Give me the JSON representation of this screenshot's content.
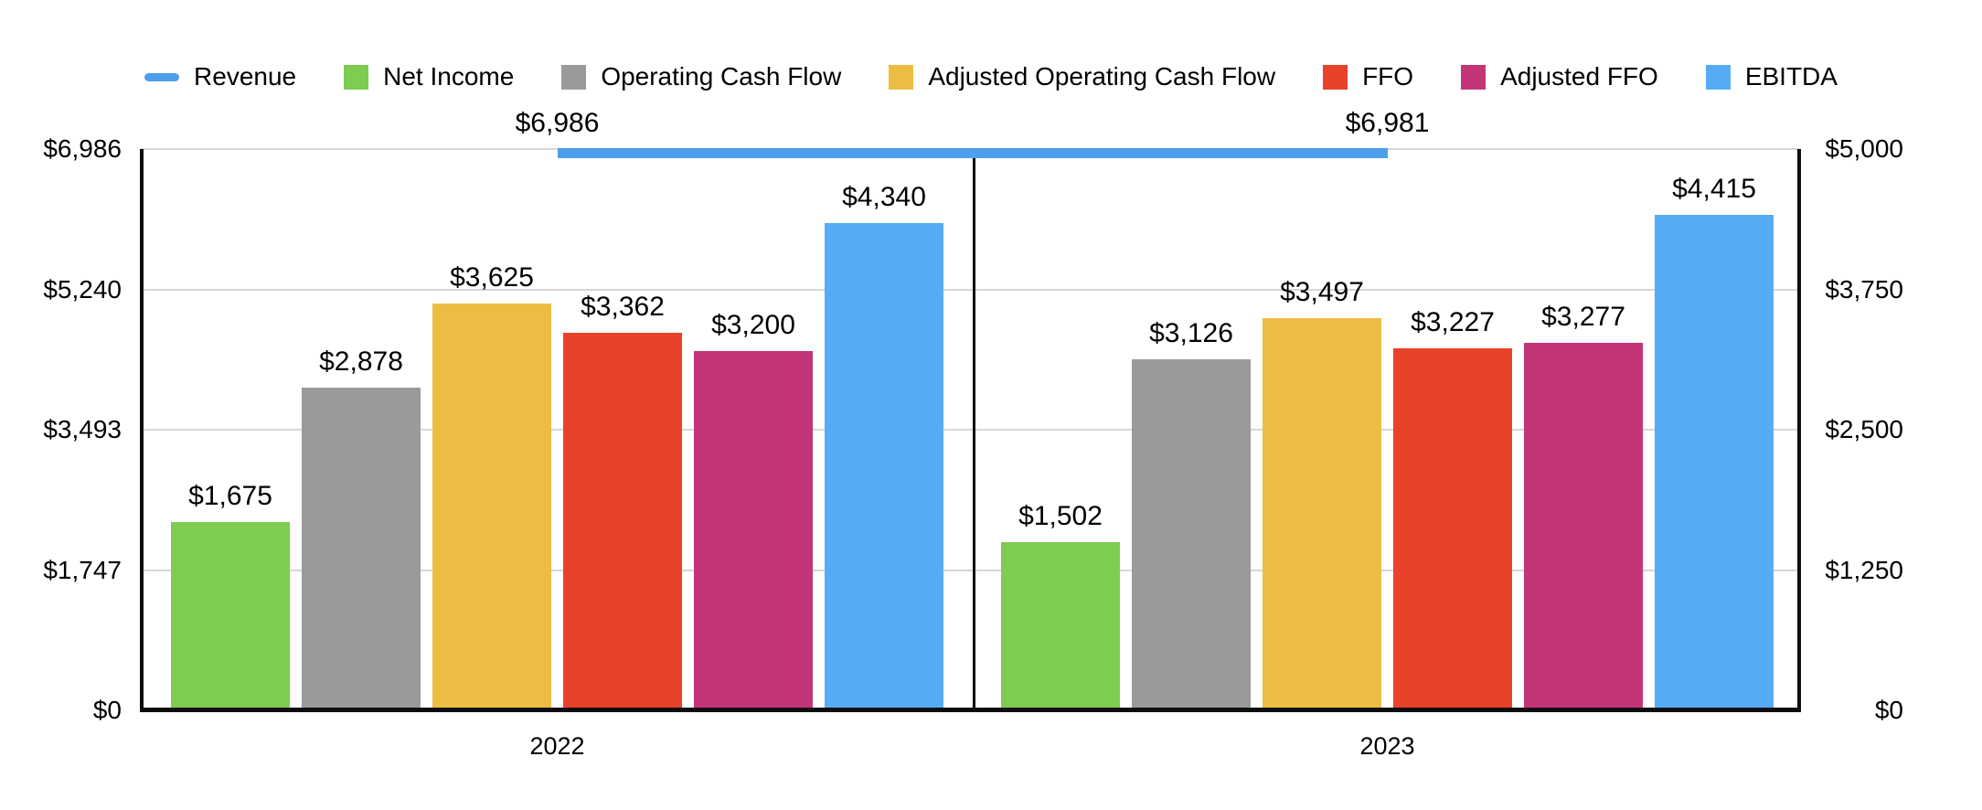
{
  "colors": {
    "background": "#ffffff",
    "gridline": "#d6d6d6",
    "axis_frame": "#0d0d0d",
    "text": "#000000"
  },
  "chart_data": {
    "type": "combo-bar-line",
    "title": "",
    "xlabel": "",
    "ylabel": "",
    "grid": true,
    "legend_position": "top",
    "categories": [
      "2022",
      "2023"
    ],
    "series": [
      {
        "name": "Revenue",
        "type": "line",
        "axis": "left",
        "color": "#4d9eec",
        "values": [
          6986,
          6981
        ],
        "labels": [
          "$6,986",
          "$6,981"
        ]
      },
      {
        "name": "Net Income",
        "type": "bar",
        "axis": "right",
        "color": "#7ecc52",
        "values": [
          1675,
          1502
        ],
        "labels": [
          "$1,675",
          "$1,502"
        ]
      },
      {
        "name": "Operating Cash Flow",
        "type": "bar",
        "axis": "right",
        "color": "#9a9a9a",
        "values": [
          2878,
          3126
        ],
        "labels": [
          "$2,878",
          "$3,126"
        ]
      },
      {
        "name": "Adjusted Operating Cash Flow",
        "type": "bar",
        "axis": "right",
        "color": "#ecbd43",
        "values": [
          3625,
          3497
        ],
        "labels": [
          "$3,625",
          "$3,497"
        ]
      },
      {
        "name": "FFO",
        "type": "bar",
        "axis": "right",
        "color": "#e9422a",
        "values": [
          3362,
          3227
        ],
        "labels": [
          "$3,362",
          "$3,227"
        ]
      },
      {
        "name": "Adjusted FFO",
        "type": "bar",
        "axis": "right",
        "color": "#c43578",
        "values": [
          3200,
          3277
        ],
        "labels": [
          "$3,200",
          "$3,277"
        ]
      },
      {
        "name": "EBITDA",
        "type": "bar",
        "axis": "right",
        "color": "#55acf5",
        "values": [
          4340,
          4415
        ],
        "labels": [
          "$4,340",
          "$4,415"
        ]
      }
    ],
    "left_axis": {
      "min": 0,
      "max": 6986,
      "tick_values": [
        6986,
        5240,
        3493,
        1747,
        0
      ],
      "tick_labels": [
        "$6,986",
        "$5,240",
        "$3,493",
        "$1,747",
        "$0"
      ]
    },
    "right_axis": {
      "min": 0,
      "max": 5000,
      "tick_values": [
        5000,
        3750,
        2500,
        1250,
        0
      ],
      "tick_labels": [
        "$5,000",
        "$3,750",
        "$2,500",
        "$1,250",
        "$0"
      ]
    }
  }
}
